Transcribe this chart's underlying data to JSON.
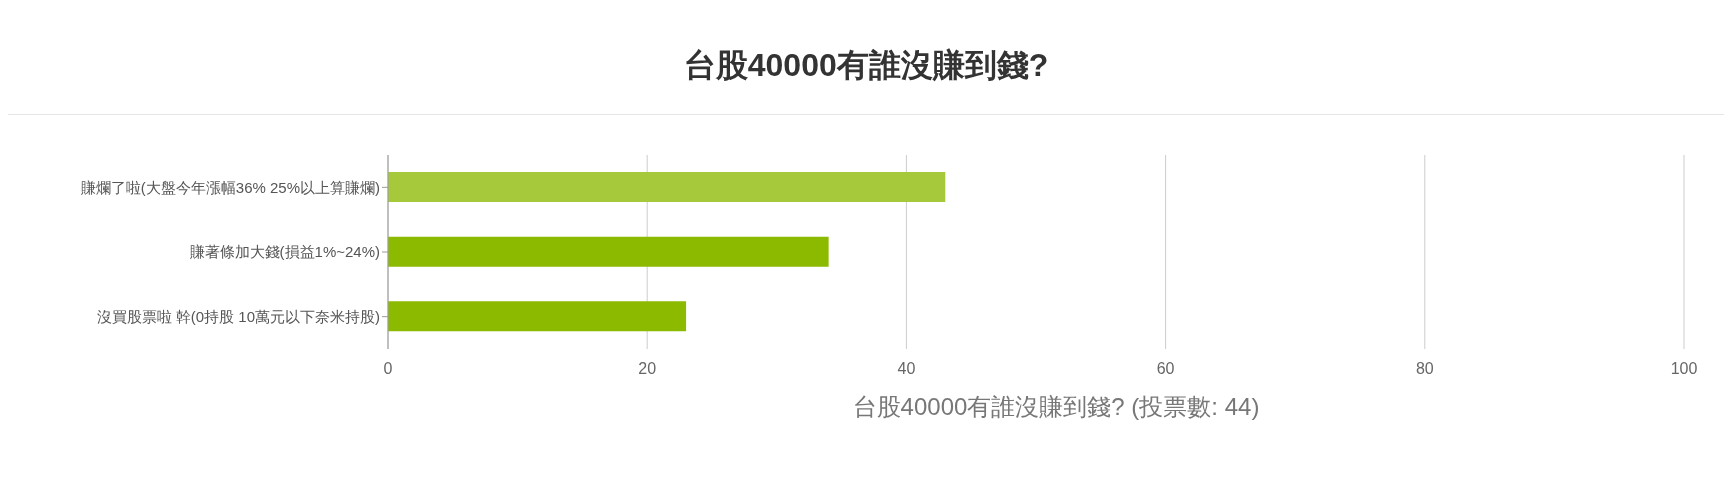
{
  "chart_data": {
    "type": "bar",
    "orientation": "horizontal",
    "title": "台股40000有誰沒賺到錢?",
    "xlabel": "台股40000有誰沒賺到錢? (投票數: 44)",
    "categories": [
      "賺爛了啦(大盤今年漲幅36% 25%以上算賺爛)",
      "賺著條加大錢(損益1%~24%)",
      "沒買股票啦 幹(0持股 10萬元以下奈米持股)"
    ],
    "values": [
      43,
      34,
      23
    ],
    "colors": [
      "#a5c93a",
      "#8cba00",
      "#8cba00"
    ],
    "xlim": [
      0,
      100
    ],
    "xticks": [
      0,
      20,
      40,
      60,
      80,
      100
    ],
    "grid": "x",
    "legend": false
  }
}
